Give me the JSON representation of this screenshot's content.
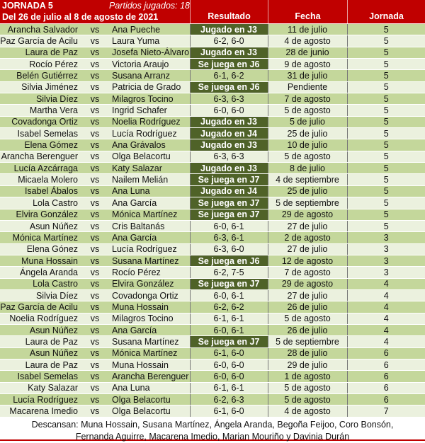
{
  "header": {
    "title": "JORNADA 5",
    "played": "Partidos jugados: 18",
    "dates": "Del 26 de julio al 8 de agosto de 2021",
    "col_result": "Resultado",
    "col_date": "Fecha",
    "col_round": "Jornada"
  },
  "colors": {
    "header_red": "#c00000",
    "row_green": "#c4d79b",
    "row_light": "#ebf1de",
    "status_dark_green": "#4f6228"
  },
  "rows": [
    {
      "p1": "Arancha Salvador",
      "vs": "vs",
      "p2": "Ana Pueche",
      "result": "Jugado en J3",
      "status": true,
      "date": "11 de julio",
      "round": "5"
    },
    {
      "p1": "Paz García de Acilu",
      "vs": "vs",
      "p2": "Laura Yuma",
      "result": "6-2, 6-0",
      "status": false,
      "date": "4 de agosto",
      "round": "5"
    },
    {
      "p1": "Laura de Paz",
      "vs": "vs",
      "p2": "Josefa Nieto-Álvaro",
      "result": "Jugado en J3",
      "status": true,
      "date": "28 de junio",
      "round": "5"
    },
    {
      "p1": "Rocío Pérez",
      "vs": "vs",
      "p2": "Victoria Araujo",
      "result": "Se juega en J6",
      "status": true,
      "date": "9 de agosto",
      "round": "5"
    },
    {
      "p1": "Belén Gutiérrez",
      "vs": "vs",
      "p2": "Susana Arranz",
      "result": "6-1, 6-2",
      "status": false,
      "date": "31 de julio",
      "round": "5"
    },
    {
      "p1": "Silvia Jiménez",
      "vs": "vs",
      "p2": "Patricia de Grado",
      "result": "Se juega en J6",
      "status": true,
      "date": "Pendiente",
      "round": "5"
    },
    {
      "p1": "Silvia Díez",
      "vs": "vs",
      "p2": "Milagros Tocino",
      "result": "6-3, 6-3",
      "status": false,
      "date": "7 de agosto",
      "round": "5"
    },
    {
      "p1": "Martha Vera",
      "vs": "vs",
      "p2": "Ingrid Schafer",
      "result": "6-0, 6-0",
      "status": false,
      "date": "5 de agosto",
      "round": "5"
    },
    {
      "p1": "Covadonga Ortiz",
      "vs": "vs",
      "p2": "Noelia Rodríguez",
      "result": "Jugado en J3",
      "status": true,
      "date": "5 de julio",
      "round": "5"
    },
    {
      "p1": "Isabel Semelas",
      "vs": "vs",
      "p2": "Lucía Rodríguez",
      "result": "Jugado en J4",
      "status": true,
      "date": "25 de julio",
      "round": "5"
    },
    {
      "p1": "Elena Gómez",
      "vs": "vs",
      "p2": "Ana Grávalos",
      "result": "Jugado en J3",
      "status": true,
      "date": "10 de julio",
      "round": "5"
    },
    {
      "p1": "Arancha Berenguer",
      "vs": "vs",
      "p2": "Olga Belacortu",
      "result": "6-3, 6-3",
      "status": false,
      "date": "5 de agosto",
      "round": "5"
    },
    {
      "p1": "Lucía Azcárraga",
      "vs": "vs",
      "p2": "Katy Salazar",
      "result": "Jugado en J3",
      "status": true,
      "date": "8 de julio",
      "round": "5"
    },
    {
      "p1": "Micaela Molero",
      "vs": "vs",
      "p2": "Nailem Melián",
      "result": "Se juega en J7",
      "status": true,
      "date": "4 de septiembre",
      "round": "5"
    },
    {
      "p1": "Isabel Ábalos",
      "vs": "vs",
      "p2": "Ana Luna",
      "result": "Jugado en J4",
      "status": true,
      "date": "25 de julio",
      "round": "5"
    },
    {
      "p1": "Lola Castro",
      "vs": "vs",
      "p2": "Ana García",
      "result": "Se juega en J7",
      "status": true,
      "date": "5 de septiembre",
      "round": "5"
    },
    {
      "p1": "Elvira González",
      "vs": "vs",
      "p2": "Mónica Martínez",
      "result": "Se juega en J7",
      "status": true,
      "date": "29 de agosto",
      "round": "5"
    },
    {
      "p1": "Asun Núñez",
      "vs": "vs",
      "p2": "Cris Baltanás",
      "result": "6-0, 6-1",
      "status": false,
      "date": "27 de julio",
      "round": "5"
    },
    {
      "p1": "Mónica Martínez",
      "vs": "vs",
      "p2": "Ana García",
      "result": "6-3, 6-1",
      "status": false,
      "date": "2 de agosto",
      "round": "3"
    },
    {
      "p1": "Elena Gónez",
      "vs": "vs",
      "p2": "Lucía Rodríguez",
      "result": "6-3, 6-0",
      "status": false,
      "date": "27 de julio",
      "round": "3"
    },
    {
      "p1": "Muna Hossain",
      "vs": "vs",
      "p2": "Susana Martínez",
      "result": "Se juega en J6",
      "status": true,
      "date": "12 de agosto",
      "round": "3"
    },
    {
      "p1": "Ángela Aranda",
      "vs": "vs",
      "p2": "Rocío Pérez",
      "result": "6-2, 7-5",
      "status": false,
      "date": "7 de agosto",
      "round": "3"
    },
    {
      "p1": "Lola Castro",
      "vs": "vs",
      "p2": "Elvira González",
      "result": "Se juega en J7",
      "status": true,
      "date": "29 de agosto",
      "round": "4"
    },
    {
      "p1": "Silvia Díez",
      "vs": "vs",
      "p2": "Covadonga Ortiz",
      "result": "6-0, 6-1",
      "status": false,
      "date": "27 de julio",
      "round": "4"
    },
    {
      "p1": "Paz García de Acilu",
      "vs": "vs",
      "p2": "Muna Hossain",
      "result": "6-2, 6-2",
      "status": false,
      "date": "26 de julio",
      "round": "4"
    },
    {
      "p1": "Noelia Rodríguez",
      "vs": "vs",
      "p2": "Milagros Tocino",
      "result": "6-1, 6-1",
      "status": false,
      "date": "5 de agosto",
      "round": "4"
    },
    {
      "p1": "Asun Núñez",
      "vs": "vs",
      "p2": "Ana García",
      "result": "6-0, 6-1",
      "status": false,
      "date": "26 de julio",
      "round": "4"
    },
    {
      "p1": "Laura de Paz",
      "vs": "vs",
      "p2": "Susana Martínez",
      "result": "Se juega en J7",
      "status": true,
      "date": "5 de septiembre",
      "round": "4"
    },
    {
      "p1": "Asun Núñez",
      "vs": "vs",
      "p2": "Mónica Martínez",
      "result": "6-1, 6-0",
      "status": false,
      "date": "28 de julio",
      "round": "6"
    },
    {
      "p1": "Laura de Paz",
      "vs": "vs",
      "p2": "Muna Hossain",
      "result": "6-0, 6-0",
      "status": false,
      "date": "29 de julio",
      "round": "6"
    },
    {
      "p1": "Isabel Semelas",
      "vs": "vs",
      "p2": "Arancha Berenguer",
      "result": "6-0, 6-0",
      "status": false,
      "date": "1 de agosto",
      "round": "6"
    },
    {
      "p1": "Katy Salazar",
      "vs": "vs",
      "p2": "Ana Luna",
      "result": "6-1, 6-1",
      "status": false,
      "date": "5 de agosto",
      "round": "6"
    },
    {
      "p1": "Lucía Rodríguez",
      "vs": "vs",
      "p2": "Olga Belacortu",
      "result": "6-2, 6-3",
      "status": false,
      "date": "5 de agosto",
      "round": "6"
    },
    {
      "p1": "Macarena Imedio",
      "vs": "vs",
      "p2": "Olga Belacortu",
      "result": "6-1, 6-0",
      "status": false,
      "date": "4 de agosto",
      "round": "7"
    }
  ],
  "footer": {
    "line1": "Descansan: Muna Hossain, Susana Martínez, Ángela Aranda, Begoña Feijoo, Coro Bonsón,",
    "line2": "Fernanda Aguirre, Macarena Imedio, Marian Mouriño y Davinia Durán"
  }
}
